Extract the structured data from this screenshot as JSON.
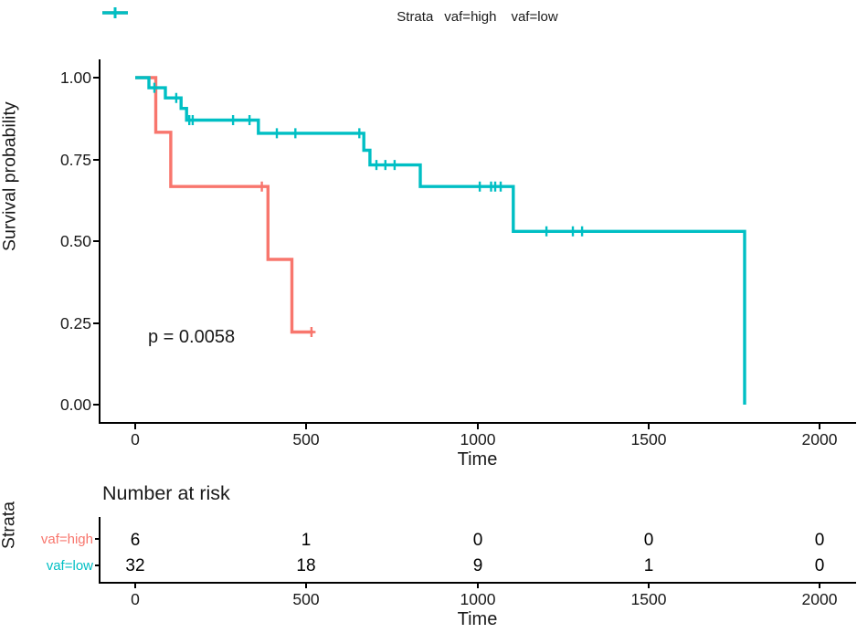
{
  "legend": {
    "title": "Strata",
    "items": [
      {
        "label": "vaf=high",
        "color": "#F8766D"
      },
      {
        "label": "vaf=low",
        "color": "#00BFC4"
      }
    ]
  },
  "main_plot": {
    "y_axis_label": "Survival probability",
    "x_axis_label": "Time",
    "p_value_text": "p = 0.0058"
  },
  "chart_data": {
    "type": "line",
    "subtype": "kaplan-meier-step-curves",
    "xlabel": "Time",
    "ylabel": "Survival probability",
    "xlim": [
      0,
      2100
    ],
    "ylim": [
      0,
      1
    ],
    "x_ticks": [
      0,
      500,
      1000,
      1500,
      2000
    ],
    "x_tick_labels": [
      "0",
      "500",
      "1000",
      "1500",
      "2000"
    ],
    "y_ticks": [
      0,
      0.25,
      0.5,
      0.75,
      1
    ],
    "y_tick_labels": [
      "0.00",
      "0.25",
      "0.50",
      "0.75",
      "1.00"
    ],
    "grid": false,
    "legend_position": "top",
    "annotations": [
      {
        "text": "p = 0.0058",
        "x": 120,
        "y": 0.22
      }
    ],
    "series": [
      {
        "name": "vaf=high",
        "color": "#F8766D",
        "steps": [
          [
            0,
            1.0
          ],
          [
            60,
            0.833
          ],
          [
            104,
            0.667
          ],
          [
            388,
            0.444
          ],
          [
            458,
            0.222
          ]
        ],
        "end_time": 520,
        "censor_marks": [
          [
            370,
            0.667
          ],
          [
            515,
            0.222
          ]
        ]
      },
      {
        "name": "vaf=low",
        "color": "#00BFC4",
        "steps": [
          [
            0,
            1.0
          ],
          [
            40,
            0.969
          ],
          [
            88,
            0.938
          ],
          [
            134,
            0.906
          ],
          [
            150,
            0.87
          ],
          [
            360,
            0.83
          ],
          [
            668,
            0.778
          ],
          [
            686,
            0.733
          ],
          [
            833,
            0.667
          ],
          [
            1105,
            0.53
          ],
          [
            1781,
            0.0
          ]
        ],
        "end_time": 1781,
        "censor_marks": [
          [
            56,
            0.969
          ],
          [
            120,
            0.938
          ],
          [
            158,
            0.87
          ],
          [
            168,
            0.87
          ],
          [
            286,
            0.87
          ],
          [
            334,
            0.87
          ],
          [
            414,
            0.83
          ],
          [
            468,
            0.83
          ],
          [
            655,
            0.83
          ],
          [
            705,
            0.733
          ],
          [
            731,
            0.733
          ],
          [
            758,
            0.733
          ],
          [
            1007,
            0.667
          ],
          [
            1040,
            0.667
          ],
          [
            1052,
            0.667
          ],
          [
            1068,
            0.667
          ],
          [
            1202,
            0.53
          ],
          [
            1279,
            0.53
          ],
          [
            1306,
            0.53
          ]
        ]
      }
    ]
  },
  "risk_table": {
    "title": "Number at risk",
    "y_axis_label": "Strata",
    "x_axis_label": "Time",
    "time_points": [
      0,
      500,
      1000,
      1500,
      2000
    ],
    "rows": [
      {
        "label": "vaf=high",
        "color": "#F8766D",
        "counts": [
          "6",
          "1",
          "0",
          "0",
          "0"
        ]
      },
      {
        "label": "vaf=low",
        "color": "#00BFC4",
        "counts": [
          "32",
          "18",
          "9",
          "1",
          "0"
        ]
      }
    ]
  }
}
